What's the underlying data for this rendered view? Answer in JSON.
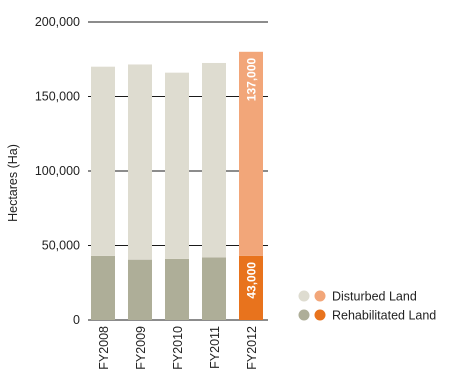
{
  "chart_data": {
    "type": "bar",
    "stacked": true,
    "title": "",
    "xlabel": "",
    "ylabel": "Hectares (Ha)",
    "ylim": [
      0,
      200000
    ],
    "yticks": [
      0,
      50000,
      100000,
      150000,
      200000
    ],
    "ytick_labels": [
      "0",
      "50,000",
      "100,000",
      "150,000",
      "200,000"
    ],
    "grid": "horizontal at major ticks",
    "legend_position": "bottom-right",
    "categories": [
      "FY2008",
      "FY2009",
      "FY2010",
      "FY2011",
      "FY2012"
    ],
    "series": [
      {
        "name": "Rehabilitated Land",
        "values": [
          43000,
          40500,
          41000,
          42000,
          43000
        ],
        "color": "#aeae98",
        "highlight_color": "#e8731d"
      },
      {
        "name": "Disturbed Land",
        "values": [
          127000,
          131000,
          125000,
          130500,
          137000
        ],
        "color": "#dedcd0",
        "highlight_color": "#f2a679"
      }
    ],
    "highlight_category": "FY2012",
    "data_labels": [
      {
        "category": "FY2012",
        "series": "Rehabilitated Land",
        "text": "43,000"
      },
      {
        "category": "FY2012",
        "series": "Disturbed Land",
        "text": "137,000"
      }
    ]
  }
}
